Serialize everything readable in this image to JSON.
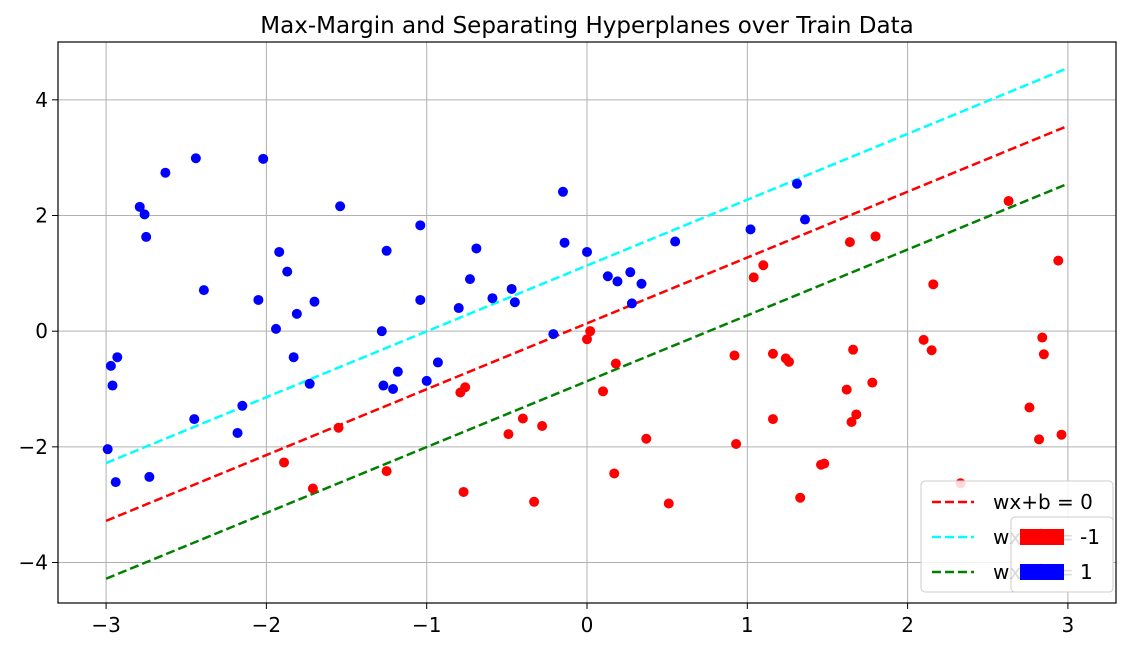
{
  "chart_data": {
    "type": "scatter",
    "title": "Max-Margin and Separating Hyperplanes over Train Data",
    "xlabel": "",
    "ylabel": "",
    "xlim": [
      -3.3,
      3.3
    ],
    "ylim": [
      -4.7,
      5.0
    ],
    "xticks": [
      -3,
      -2,
      -1,
      0,
      1,
      2,
      3
    ],
    "xtick_labels": [
      "−3",
      "−2",
      "−1",
      "0",
      "1",
      "2",
      "3"
    ],
    "yticks": [
      -4,
      -2,
      0,
      2,
      4
    ],
    "ytick_labels": [
      "−4",
      "−2",
      "0",
      "2",
      "4"
    ],
    "grid": true,
    "lines": [
      {
        "name": "wx+b = 0",
        "color": "#ff0000",
        "x": [
          -3,
          3
        ],
        "y": [
          -3.28,
          3.55
        ]
      },
      {
        "name": "wx+b = -1",
        "color": "#00ffff",
        "x": [
          -3,
          3
        ],
        "y": [
          -2.28,
          4.55
        ]
      },
      {
        "name": "wx+b = 1",
        "color": "#008000",
        "x": [
          -3,
          3
        ],
        "y": [
          -4.28,
          2.55
        ]
      }
    ],
    "series": [
      {
        "name": "-1",
        "color": "#ff0000",
        "points": [
          [
            -1.89,
            -2.27
          ],
          [
            -1.71,
            -2.72
          ],
          [
            -1.55,
            -1.67
          ],
          [
            -1.25,
            -2.42
          ],
          [
            -0.79,
            -1.06
          ],
          [
            -0.76,
            -0.97
          ],
          [
            -0.77,
            -2.78
          ],
          [
            -0.49,
            -1.78
          ],
          [
            -0.4,
            -1.51
          ],
          [
            -0.33,
            -2.95
          ],
          [
            -0.28,
            -1.64
          ],
          [
            0.0,
            -0.14
          ],
          [
            0.02,
            0.0
          ],
          [
            0.1,
            -1.04
          ],
          [
            0.17,
            -2.46
          ],
          [
            0.18,
            -0.56
          ],
          [
            0.37,
            -1.86
          ],
          [
            0.51,
            -2.98
          ],
          [
            0.92,
            -0.42
          ],
          [
            0.93,
            -1.95
          ],
          [
            1.04,
            0.93
          ],
          [
            1.1,
            1.14
          ],
          [
            1.16,
            -0.39
          ],
          [
            1.16,
            -1.52
          ],
          [
            1.24,
            -0.47
          ],
          [
            1.26,
            -0.53
          ],
          [
            1.33,
            -2.88
          ],
          [
            1.46,
            -2.31
          ],
          [
            1.48,
            -2.29
          ],
          [
            1.62,
            -1.01
          ],
          [
            1.64,
            1.54
          ],
          [
            1.65,
            -1.57
          ],
          [
            1.66,
            -0.32
          ],
          [
            1.68,
            -1.44
          ],
          [
            1.78,
            -0.89
          ],
          [
            1.8,
            1.64
          ],
          [
            2.1,
            -0.15
          ],
          [
            2.15,
            -0.33
          ],
          [
            2.16,
            0.81
          ],
          [
            2.33,
            -2.63
          ],
          [
            2.63,
            2.25
          ],
          [
            2.76,
            -1.32
          ],
          [
            2.82,
            -1.87
          ],
          [
            2.84,
            -0.11
          ],
          [
            2.85,
            -0.4
          ],
          [
            2.94,
            1.22
          ],
          [
            2.96,
            -1.79
          ]
        ]
      },
      {
        "name": "1",
        "color": "#0000ff",
        "points": [
          [
            -2.99,
            -2.04
          ],
          [
            -2.97,
            -0.6
          ],
          [
            -2.96,
            -0.94
          ],
          [
            -2.94,
            -2.61
          ],
          [
            -2.93,
            -0.45
          ],
          [
            -2.79,
            2.15
          ],
          [
            -2.76,
            2.02
          ],
          [
            -2.75,
            1.63
          ],
          [
            -2.73,
            -2.52
          ],
          [
            -2.63,
            2.74
          ],
          [
            -2.45,
            -1.52
          ],
          [
            -2.44,
            2.99
          ],
          [
            -2.39,
            0.71
          ],
          [
            -2.18,
            -1.76
          ],
          [
            -2.15,
            -1.29
          ],
          [
            -2.05,
            0.54
          ],
          [
            -2.02,
            2.98
          ],
          [
            -1.94,
            0.04
          ],
          [
            -1.92,
            1.37
          ],
          [
            -1.87,
            1.03
          ],
          [
            -1.83,
            -0.45
          ],
          [
            -1.81,
            0.3
          ],
          [
            -1.73,
            -0.91
          ],
          [
            -1.7,
            0.51
          ],
          [
            -1.54,
            2.16
          ],
          [
            -1.28,
            0.0
          ],
          [
            -1.27,
            -0.94
          ],
          [
            -1.25,
            1.39
          ],
          [
            -1.21,
            -1.0
          ],
          [
            -1.18,
            -0.7
          ],
          [
            -1.04,
            1.83
          ],
          [
            -1.04,
            0.54
          ],
          [
            -1.0,
            -0.86
          ],
          [
            -0.93,
            -0.54
          ],
          [
            -0.8,
            0.4
          ],
          [
            -0.73,
            0.9
          ],
          [
            -0.69,
            1.43
          ],
          [
            -0.59,
            0.57
          ],
          [
            -0.47,
            0.73
          ],
          [
            -0.45,
            0.5
          ],
          [
            -0.21,
            -0.05
          ],
          [
            -0.15,
            2.41
          ],
          [
            -0.14,
            1.53
          ],
          [
            0.0,
            1.37
          ],
          [
            0.13,
            0.95
          ],
          [
            0.19,
            0.86
          ],
          [
            0.27,
            1.02
          ],
          [
            0.28,
            0.48
          ],
          [
            0.34,
            0.82
          ],
          [
            0.55,
            1.55
          ],
          [
            1.02,
            1.76
          ],
          [
            1.31,
            2.55
          ],
          [
            1.36,
            1.93
          ]
        ]
      }
    ],
    "legend_lines": {
      "placement": "lower right",
      "entries": [
        {
          "label": "wx+b = 0",
          "color": "#ff0000"
        },
        {
          "label": "wx+b = -1",
          "color": "#00ffff"
        },
        {
          "label": "wx+b = 1",
          "color": "#008000"
        }
      ]
    },
    "legend_classes": {
      "placement": "lower right",
      "entries": [
        {
          "label": "-1",
          "color": "#ff0000"
        },
        {
          "label": "1",
          "color": "#0000ff"
        }
      ]
    }
  }
}
